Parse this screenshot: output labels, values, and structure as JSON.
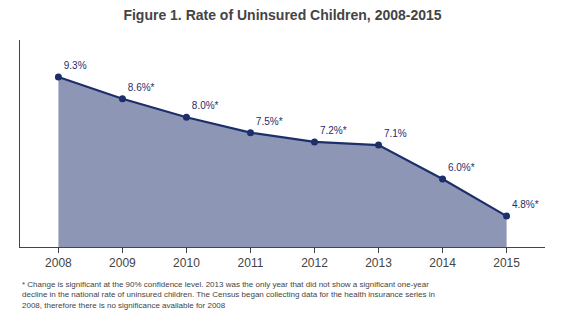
{
  "chart_data": {
    "type": "line",
    "title": "Figure 1. Rate of Uninsured Children, 2008-2015",
    "x": [
      2008,
      2009,
      2010,
      2011,
      2012,
      2013,
      2014,
      2015
    ],
    "values": [
      9.3,
      8.6,
      8.0,
      7.5,
      7.2,
      7.1,
      6.0,
      4.8
    ],
    "value_labels": [
      "9.3%",
      "8.6%*",
      "8.0%*",
      "7.5%*",
      "7.2%*",
      "7.1%",
      "6.0%*",
      "4.8%*"
    ],
    "data_labels": true,
    "color": "#1c2f6b",
    "marker": "circle",
    "xlim": [
      2007.4,
      2015.6
    ],
    "xticks": [
      2008,
      2009,
      2010,
      2011,
      2012,
      2013,
      2014,
      2015
    ],
    "ylim": [
      3.8,
      10.5
    ],
    "tick_labels": "x",
    "grid": false,
    "annotations": [
      "* Change is significant at the 90% confidence level. 2013 was the only year that did not show a significant one-year",
      "decline in the national rate of uninsured children. The Census began collecting data for the health insurance series in",
      "2008, therefore there is no significance available for 2008"
    ]
  }
}
